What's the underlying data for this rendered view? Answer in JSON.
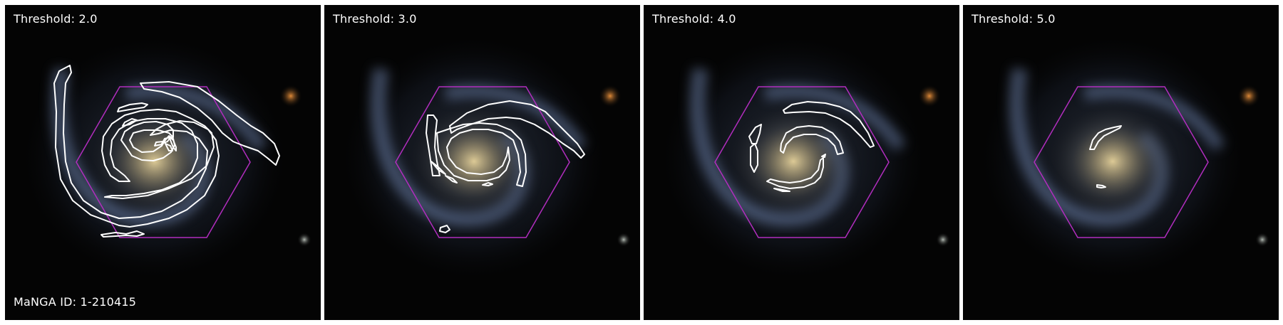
{
  "figure": {
    "manga_id_text": "MaNGA ID: 1-210415",
    "panels": [
      {
        "threshold_text": "Threshold: 2.0"
      },
      {
        "threshold_text": "Threshold: 3.0"
      },
      {
        "threshold_text": "Threshold: 4.0"
      },
      {
        "threshold_text": "Threshold: 5.0"
      }
    ]
  },
  "colors": {
    "contour": "#ffffff",
    "hexagon": "#b12dbe",
    "background": "#040404",
    "galaxy_core": "#d9c48a",
    "galaxy_arms": "#8aa0c8",
    "foreground_star": "#d07a2a"
  }
}
